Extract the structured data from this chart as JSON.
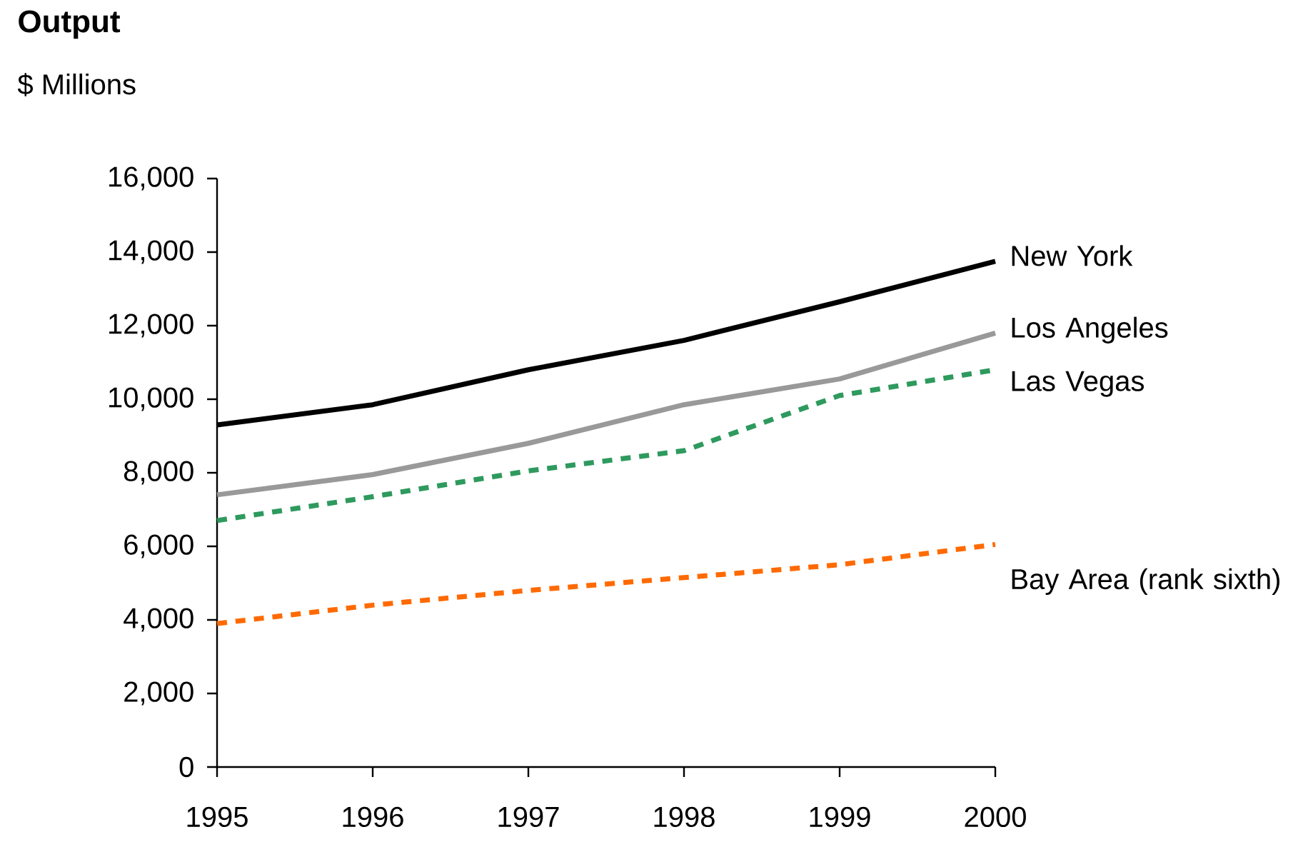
{
  "chart_data": {
    "type": "line",
    "title": "Output",
    "ylabel": "$ Millions",
    "x": [
      1995,
      1996,
      1997,
      1998,
      1999,
      2000
    ],
    "series": [
      {
        "name": "New York",
        "color": "#000000",
        "line_style": "solid",
        "values": [
          9300,
          9850,
          10800,
          11600,
          12650,
          13750
        ]
      },
      {
        "name": "Los Angeles",
        "color": "#999999",
        "line_style": "solid",
        "values": [
          7400,
          7950,
          8800,
          9850,
          10550,
          11800
        ]
      },
      {
        "name": "Las Vegas",
        "color": "#2e9a5e",
        "line_style": "dashed",
        "values": [
          6700,
          7350,
          8050,
          8600,
          10100,
          10800
        ]
      },
      {
        "name": "Bay Area (rank sixth)",
        "color": "#ff6a00",
        "line_style": "dashed",
        "values": [
          3900,
          4400,
          4800,
          5150,
          5500,
          6050
        ]
      }
    ],
    "xlim": [
      1995,
      2000
    ],
    "xticks": [
      1995,
      1996,
      1997,
      1998,
      1999,
      2000
    ],
    "ylim": [
      0,
      16000
    ],
    "yticks": [
      0,
      {
        "value": 2000,
        "label": "2,000"
      },
      {
        "value": 4000,
        "label": "4,000"
      },
      {
        "value": 6000,
        "label": "6,000"
      },
      {
        "value": 8000,
        "label": "8,000"
      },
      {
        "value": 10000,
        "label": "10,000"
      },
      {
        "value": 12000,
        "label": "12,000"
      },
      {
        "value": 14000,
        "label": "14,000"
      },
      {
        "value": 16000,
        "label": "16,000"
      }
    ],
    "grid": false,
    "legend": false,
    "marker": "none"
  }
}
